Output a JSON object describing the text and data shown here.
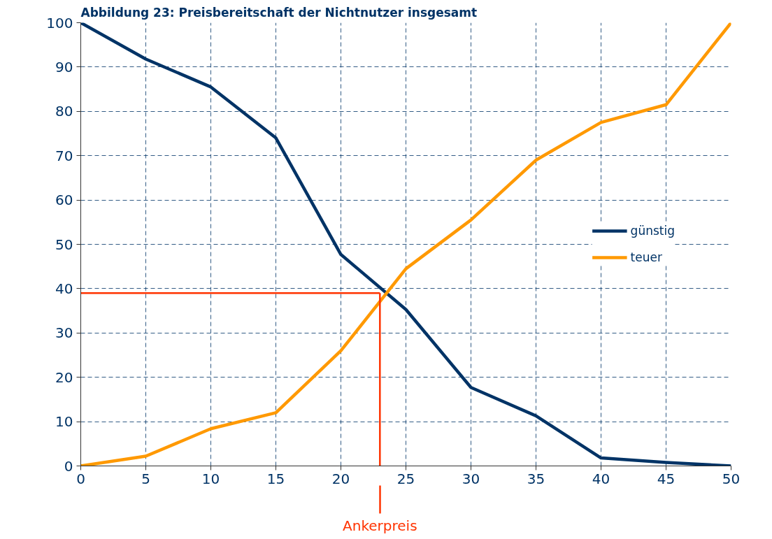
{
  "chart_data": {
    "type": "line",
    "title": "Abbildung 23: Preisbereitschaft der Nichtnutzer insgesamt",
    "x": [
      0,
      5,
      10,
      15,
      20,
      25,
      30,
      35,
      40,
      45,
      50
    ],
    "series": [
      {
        "name": "günstig",
        "color": "#003366",
        "values": [
          100,
          91.8,
          85.5,
          74,
          47.7,
          35.3,
          17.7,
          11.3,
          1.8,
          0.8,
          0
        ]
      },
      {
        "name": "teuer",
        "color": "#ff9900",
        "values": [
          0,
          2.2,
          8.4,
          12,
          26,
          44.5,
          55.5,
          69,
          77.5,
          81.5,
          100
        ]
      }
    ],
    "xlim": [
      0,
      50
    ],
    "xticks": [
      0,
      5,
      10,
      15,
      20,
      25,
      30,
      35,
      40,
      45,
      50
    ],
    "ylim": [
      0,
      100
    ],
    "yticks": [
      0,
      10,
      20,
      30,
      40,
      50,
      60,
      70,
      80,
      90,
      100
    ],
    "ref_lines": [
      {
        "axis": "y",
        "value": 39,
        "color": "#ff3300"
      },
      {
        "axis": "x",
        "value": 23,
        "label": "Ankerpreis",
        "color": "#ff3300"
      }
    ],
    "grid": true,
    "legend": "right",
    "line_style": "solid",
    "marker": "none"
  }
}
